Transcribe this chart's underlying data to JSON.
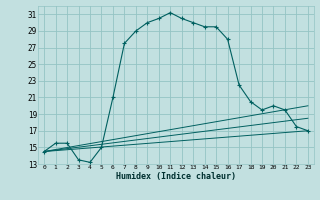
{
  "xlabel": "Humidex (Indice chaleur)",
  "bg_color": "#c2e0e0",
  "grid_color": "#94c4c4",
  "line_color": "#006060",
  "xlim": [
    -0.5,
    23.5
  ],
  "ylim": [
    13,
    32
  ],
  "yticks": [
    13,
    15,
    17,
    19,
    21,
    23,
    25,
    27,
    29,
    31
  ],
  "xticks": [
    0,
    1,
    2,
    3,
    4,
    5,
    6,
    7,
    8,
    9,
    10,
    11,
    12,
    13,
    14,
    15,
    16,
    17,
    18,
    19,
    20,
    21,
    22,
    23
  ],
  "series1_x": [
    0,
    1,
    2,
    3,
    4,
    5,
    6,
    7,
    8,
    9,
    10,
    11,
    12,
    13,
    14,
    15,
    16,
    17,
    18,
    19,
    20,
    21,
    22,
    23
  ],
  "series1_y": [
    14.5,
    15.5,
    15.5,
    13.5,
    13.2,
    15.0,
    21.0,
    27.5,
    29.0,
    30.0,
    30.5,
    31.2,
    30.5,
    30.0,
    29.5,
    29.5,
    28.0,
    22.5,
    20.5,
    19.5,
    20.0,
    19.5,
    17.5,
    17.0
  ],
  "series2_x": [
    0,
    23
  ],
  "series2_y": [
    14.5,
    17.0
  ],
  "series3_x": [
    0,
    23
  ],
  "series3_y": [
    14.5,
    18.5
  ],
  "series4_x": [
    0,
    23
  ],
  "series4_y": [
    14.5,
    20.0
  ]
}
